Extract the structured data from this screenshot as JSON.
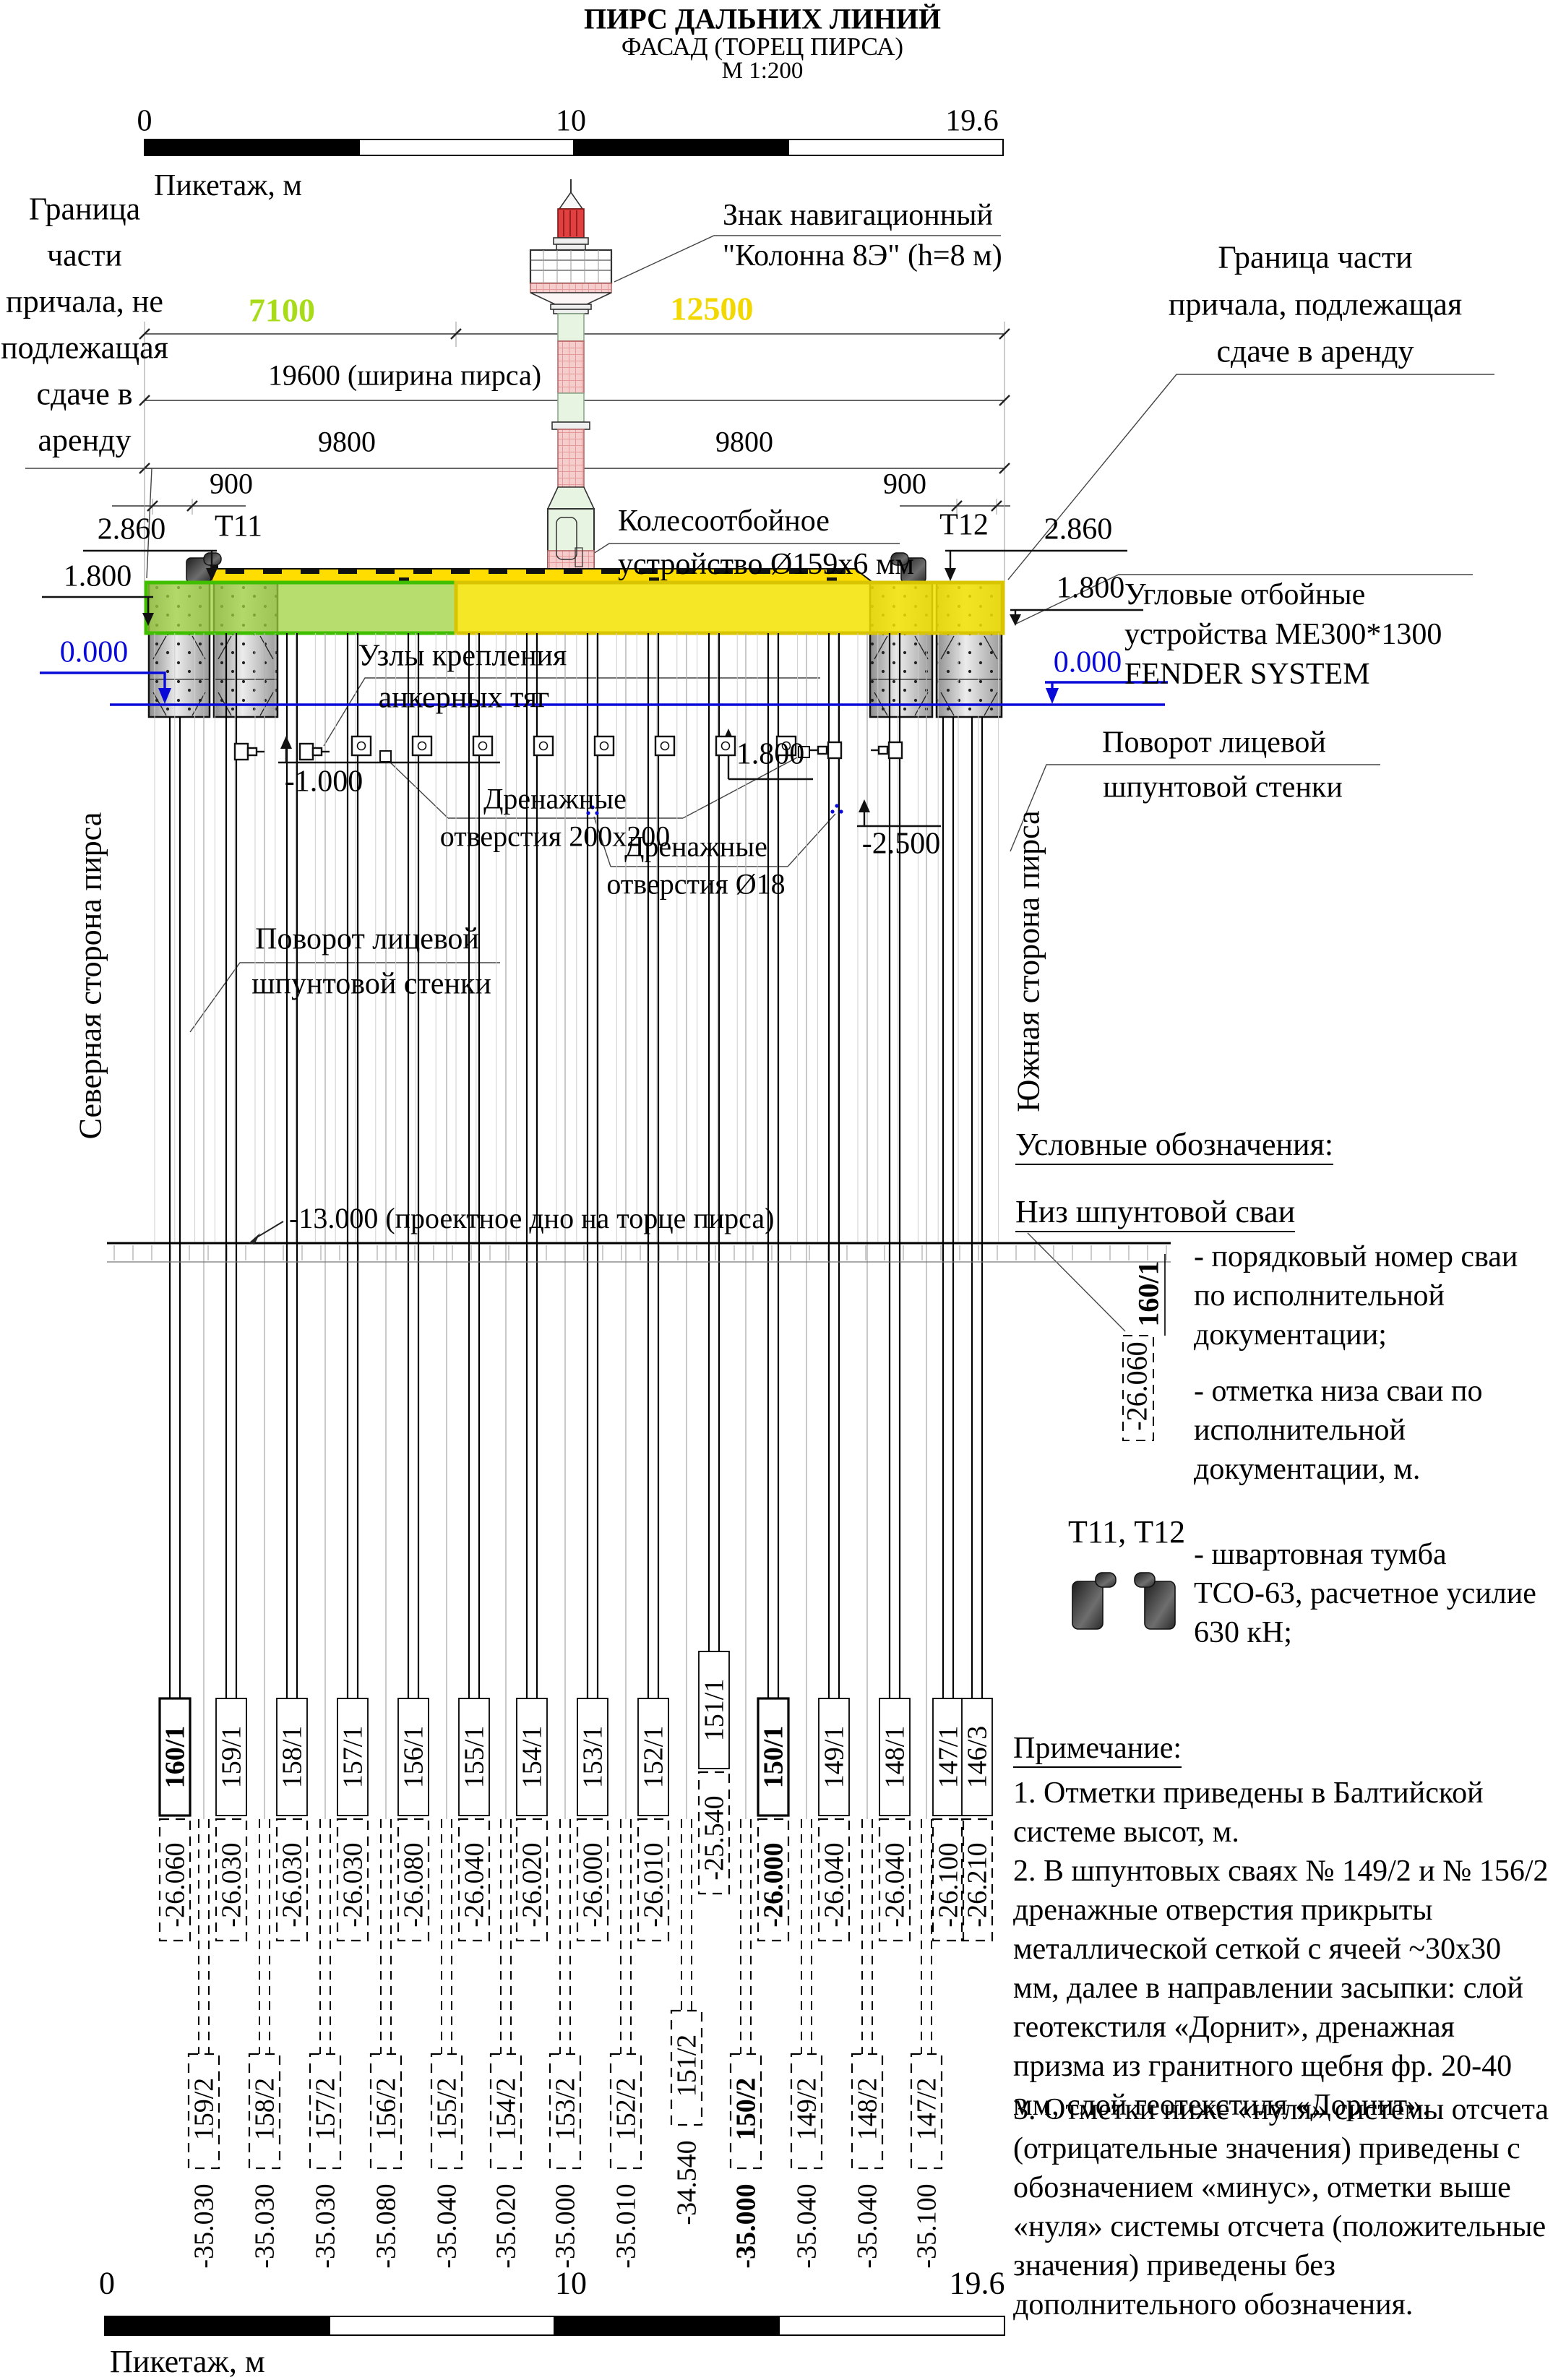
{
  "title": {
    "line1": "ПИРС ДАЛЬНИХ ЛИНИЙ",
    "line2": "ФАСАД (ТОРЕЦ ПИРСА)",
    "line3": "М 1:200"
  },
  "scalebar": {
    "zero": "0",
    "ten": "10",
    "end": "19.6",
    "axis_label": "Пикетаж, м"
  },
  "boundaries": {
    "left": [
      "Граница",
      "части",
      "причала, не",
      "подлежащая",
      "сдаче в",
      "аренду"
    ],
    "right": [
      "Граница части",
      "причала, подлежащая",
      "сдаче в аренду"
    ]
  },
  "nav_sign": {
    "line1": "Знак навигационный",
    "line2": "\"Колонна 8Э\" (h=8 м)"
  },
  "dims": {
    "d7100": "7100",
    "d12500": "12500",
    "d19600": "19600 (ширина пирса)",
    "d9800l": "9800",
    "d9800r": "9800",
    "d900l": "900",
    "d900r": "900"
  },
  "bollards": {
    "t11": "Т11",
    "t12": "Т12"
  },
  "levels": {
    "l2860l": "2.860",
    "l1800l": "1.800",
    "l0000l": "0.000",
    "l2860r": "2.860",
    "l1800r": "1.800",
    "l0000r": "0.000",
    "l1800c": "1.800",
    "lm1000": "-1.000",
    "lm2500": "-2.500",
    "seabed": "-13.000 (проектное дно на торце пирса)"
  },
  "annotations": {
    "wheel1": "Колесоотбойное",
    "wheel2": "устройство Ø159x6 мм",
    "fender1": "Угловые отбойные",
    "fender2": "устройства МЕ300*1300",
    "fender3": "FENDER SYSTEM",
    "anchor1": "Узлы крепления",
    "anchor2": "анкерных тяг",
    "drain200_1": "Дренажные",
    "drain200_2": "отверстия 200х200",
    "drain18_1": "Дренажные",
    "drain18_2": "отверстия Ø18",
    "povorot1": "Поворот лицевой",
    "povorot2": "шпунтовой стенки",
    "north": "Северная сторона пирса",
    "south": "Южная сторона пирса"
  },
  "legend": {
    "heading": "Условные обозначения:",
    "niz": "Низ шпунтовой сваи",
    "sample_num": "160/1",
    "sample_elev": "-26.060",
    "num_desc": "- порядковый номер сваи по исполнительной документации;",
    "elev_desc": "- отметка низа сваи по исполнительной документации, м.",
    "tumba_ids": "Т11, Т12",
    "tumba_desc": "- швартовная тумба ТСО-63, расчетное усилие 630 кН;"
  },
  "notes": {
    "heading": "Примечание:",
    "n1": "1. Отметки приведены в Балтийской системе высот, м.",
    "n2": "2. В шпунтовых сваях № 149/2 и № 156/2 дренажные отверстия прикрыты металлической сеткой с ячеей ~30х30 мм, далее в направлении засыпки: слой геотекстиля «Дорнит», дренажная призма из гранитного щебня фр. 20-40 мм, слой геотекстиля «Дорнит».",
    "n3": "3. Отметки ниже «нуля» системы отсчета (отрицательные значения) приведены с обозначением «минус», отметки выше «нуля» системы отсчета (положительные значения)  приведены без дополнительного обозначения."
  },
  "piles_row1": [
    {
      "num": "160/1",
      "elev": "-26.060",
      "bold": true
    },
    {
      "num": "159/1",
      "elev": "-26.030"
    },
    {
      "num": "158/1",
      "elev": "-26.030"
    },
    {
      "num": "157/1",
      "elev": "-26.030"
    },
    {
      "num": "156/1",
      "elev": "-26.080"
    },
    {
      "num": "155/1",
      "elev": "-26.040"
    },
    {
      "num": "154/1",
      "elev": "-26.020"
    },
    {
      "num": "153/1",
      "elev": "-26.000"
    },
    {
      "num": "152/1",
      "elev": "-26.010"
    },
    {
      "num": "151/1",
      "elev": "-25.540"
    },
    {
      "num": "150/1",
      "elev": "-26.000",
      "bold": true,
      "bold_elev": true
    },
    {
      "num": "149/1",
      "elev": "-26.040"
    },
    {
      "num": "148/1",
      "elev": "-26.040"
    },
    {
      "num": "147/1",
      "elev": "-26.100"
    },
    {
      "num": "146/3",
      "elev": "-26.210"
    }
  ],
  "piles_row2": [
    {
      "num": "159/2",
      "elev": "-35.030"
    },
    {
      "num": "158/2",
      "elev": "-35.030"
    },
    {
      "num": "157/2",
      "elev": "-35.030"
    },
    {
      "num": "156/2",
      "elev": "-35.080"
    },
    {
      "num": "155/2",
      "elev": "-35.040"
    },
    {
      "num": "154/2",
      "elev": "-35.020"
    },
    {
      "num": "153/2",
      "elev": "-35.000"
    },
    {
      "num": "152/2",
      "elev": "-35.010"
    },
    {
      "num": "151/2",
      "elev": "-34.540"
    },
    {
      "num": "150/2",
      "elev": "-35.000",
      "bold": true,
      "bold_elev": true
    },
    {
      "num": "149/2",
      "elev": "-35.040"
    },
    {
      "num": "148/2",
      "elev": "-35.040"
    },
    {
      "num": "147/2",
      "elev": "-35.100"
    }
  ],
  "colors": {
    "dim_green": "#A8DC1A",
    "dim_yellow": "#F2D800",
    "elevation_blue": "#0A0AD8",
    "deck_green": "#7FCE2A",
    "deck_yellow": "#F0DE00",
    "hazard_yellow": "#FFDD00"
  }
}
